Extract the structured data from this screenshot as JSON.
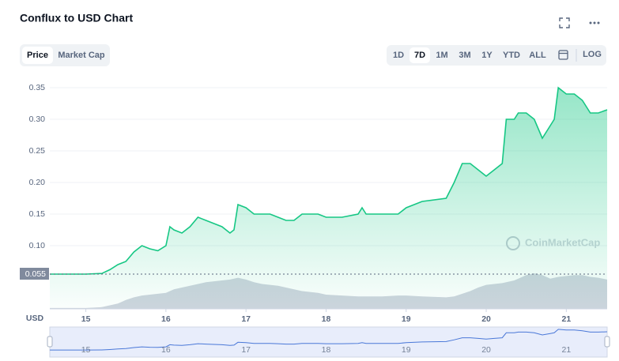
{
  "chart_data": {
    "type": "line",
    "title": "Conflux to USD Chart",
    "tabs": [
      "Price",
      "Market Cap"
    ],
    "active_tab": "Price",
    "ranges": [
      "1D",
      "7D",
      "1M",
      "3M",
      "1Y",
      "YTD",
      "ALL"
    ],
    "active_range": "7D",
    "log_label": "LOG",
    "currency_label": "USD",
    "watermark": "CoinMarketCap",
    "grid": true,
    "x": [
      14.55,
      15.0,
      15.2,
      15.3,
      15.4,
      15.5,
      15.6,
      15.7,
      15.8,
      15.9,
      16.0,
      16.05,
      16.1,
      16.2,
      16.3,
      16.4,
      16.5,
      16.6,
      16.7,
      16.8,
      16.85,
      16.9,
      17.0,
      17.1,
      17.2,
      17.3,
      17.4,
      17.5,
      17.6,
      17.7,
      17.9,
      18.0,
      18.2,
      18.4,
      18.45,
      18.5,
      18.7,
      18.9,
      19.0,
      19.2,
      19.5,
      19.6,
      19.7,
      19.8,
      19.9,
      20.0,
      20.1,
      20.2,
      20.25,
      20.35,
      20.4,
      20.5,
      20.6,
      20.7,
      20.8,
      20.85,
      20.9,
      21.0,
      21.1,
      21.2,
      21.3,
      21.4,
      21.51
    ],
    "series": [
      {
        "name": "Price",
        "color": "#16c784",
        "values": [
          0.055,
          0.055,
          0.056,
          0.062,
          0.07,
          0.075,
          0.09,
          0.1,
          0.095,
          0.092,
          0.1,
          0.13,
          0.125,
          0.12,
          0.13,
          0.145,
          0.14,
          0.135,
          0.13,
          0.12,
          0.125,
          0.165,
          0.16,
          0.15,
          0.15,
          0.15,
          0.145,
          0.14,
          0.14,
          0.15,
          0.15,
          0.145,
          0.145,
          0.15,
          0.16,
          0.15,
          0.15,
          0.15,
          0.16,
          0.17,
          0.175,
          0.2,
          0.23,
          0.23,
          0.22,
          0.21,
          0.22,
          0.23,
          0.3,
          0.3,
          0.31,
          0.31,
          0.3,
          0.27,
          0.29,
          0.3,
          0.35,
          0.34,
          0.34,
          0.33,
          0.31,
          0.31,
          0.315
        ]
      }
    ],
    "volume": [
      1,
      1,
      2,
      4,
      6,
      10,
      13,
      15,
      16,
      17,
      18,
      20,
      22,
      24,
      26,
      28,
      30,
      31,
      32,
      33,
      34,
      35,
      33,
      30,
      28,
      27,
      26,
      24,
      22,
      20,
      18,
      16,
      15,
      14,
      14,
      14,
      14,
      15,
      15,
      14,
      13,
      14,
      17,
      20,
      24,
      27,
      28,
      29,
      30,
      32,
      34,
      38,
      40,
      38,
      34,
      35,
      36,
      37,
      38,
      38,
      36,
      35,
      33
    ],
    "volume_color": "#cfd4de",
    "xlim": [
      14.55,
      21.51
    ],
    "xticks": [
      15,
      16,
      17,
      18,
      19,
      20,
      21
    ],
    "ylim": [
      0,
      0.36
    ],
    "yticks": [
      {
        "value": 0.1,
        "label": "0.10"
      },
      0.15,
      {
        "value": 0.2,
        "label": "0.20"
      },
      0.25,
      {
        "value": 0.3,
        "label": "0.30"
      },
      0.35
    ],
    "reference_value": 0.055
  }
}
